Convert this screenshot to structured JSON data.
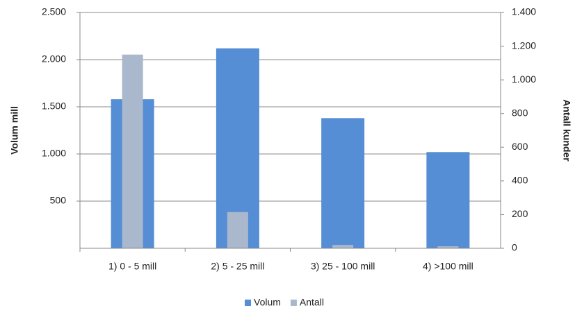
{
  "chart_data": {
    "type": "bar",
    "categories": [
      "1) 0 - 5 mill",
      "2) 5 - 25 mill",
      "3) 25 - 100 mill",
      "4) >100 mill"
    ],
    "series": [
      {
        "name": "Volum",
        "color": "#558ed5",
        "values": [
          1580,
          2120,
          1380,
          1020
        ]
      },
      {
        "name": "Antall",
        "color": "#a9b8cc",
        "values": [
          1150,
          215,
          20,
          12
        ],
        "axis": "y2"
      }
    ],
    "y_label": "Volum mill",
    "y2_label": "Antall kunder",
    "ylim": [
      0,
      2500
    ],
    "yticks": [
      500,
      {
        "value": 1000,
        "label": "1.000"
      },
      {
        "value": 1500,
        "label": "1.500"
      },
      {
        "value": 2000,
        "label": "2.000"
      },
      {
        "value": 2500,
        "label": "2.500"
      }
    ],
    "y2lim": [
      0,
      1400
    ],
    "y2ticks": [
      0,
      200,
      400,
      600,
      800,
      {
        "value": 1000,
        "label": "1.000"
      },
      {
        "value": 1200,
        "label": "1.200"
      },
      {
        "value": 1400,
        "label": "1.400"
      }
    ],
    "grid": true,
    "legend": "bottom"
  }
}
